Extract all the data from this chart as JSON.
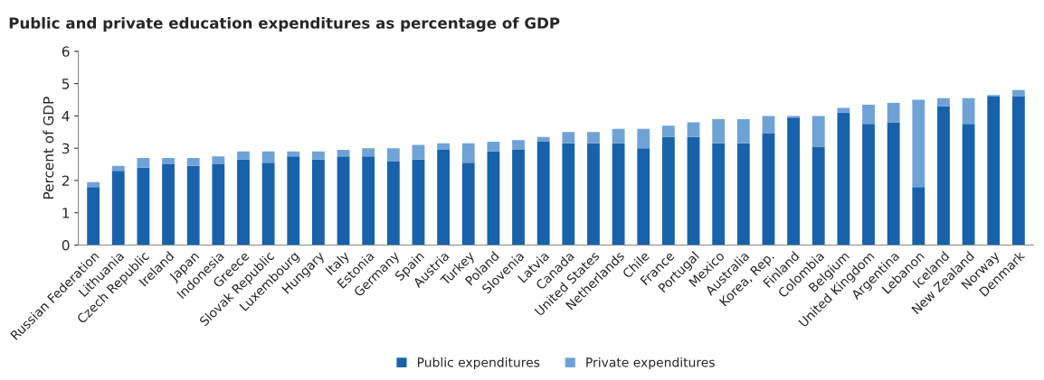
{
  "chart_data": {
    "type": "bar",
    "title": "Public and private education expenditures as percentage of GDP",
    "ylabel": "Percent of GDP",
    "categories": [
      "Russian Federation",
      "Lithuania",
      "Czech Republic",
      "Ireland",
      "Japan",
      "Indonesia",
      "Greece",
      "Slovak Republic",
      "Luxembourg",
      "Hungary",
      "Italy",
      "Estonia",
      "Germany",
      "Spain",
      "Austria",
      "Turkey",
      "Poland",
      "Slovenia",
      "Latvia",
      "Canada",
      "United States",
      "Netherlands",
      "Chile",
      "France",
      "Portugal",
      "Mexico",
      "Australia",
      "Korea, Rep.",
      "Finland",
      "Colombia",
      "Belgium",
      "United Kingdom",
      "Argentina",
      "Lebanon",
      "Iceland",
      "New Zealand",
      "Norway",
      "Denmark"
    ],
    "stacked": true,
    "series": [
      {
        "name": "Public expenditures",
        "color": "#1862ab",
        "values": [
          1.8,
          2.3,
          2.4,
          2.5,
          2.45,
          2.5,
          2.65,
          2.55,
          2.75,
          2.65,
          2.75,
          2.75,
          2.6,
          2.65,
          2.95,
          2.55,
          2.9,
          2.95,
          3.2,
          3.15,
          3.15,
          3.15,
          3.0,
          3.35,
          3.35,
          3.15,
          3.15,
          3.45,
          3.95,
          3.05,
          4.1,
          3.75,
          3.8,
          1.8,
          4.3,
          3.75,
          4.6,
          4.6
        ]
      },
      {
        "name": "Private expenditures",
        "color": "#6fa3d8",
        "values": [
          0.15,
          0.15,
          0.3,
          0.2,
          0.25,
          0.25,
          0.25,
          0.35,
          0.15,
          0.25,
          0.2,
          0.25,
          0.4,
          0.45,
          0.2,
          0.6,
          0.3,
          0.3,
          0.15,
          0.35,
          0.35,
          0.45,
          0.6,
          0.35,
          0.45,
          0.75,
          0.75,
          0.55,
          0.05,
          0.95,
          0.15,
          0.6,
          0.6,
          2.7,
          0.25,
          0.8,
          0.05,
          0.2
        ]
      }
    ],
    "ylim": [
      0,
      6
    ],
    "yticks": [
      0,
      1,
      2,
      3,
      4,
      5,
      6
    ],
    "grid": false,
    "legend": "bottom"
  }
}
